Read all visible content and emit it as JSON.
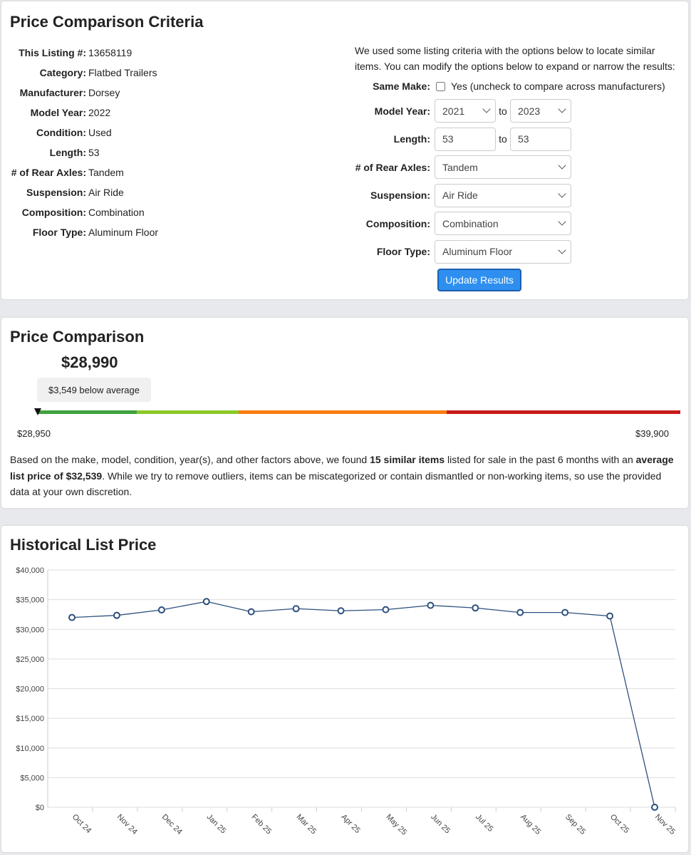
{
  "criteria": {
    "title": "Price Comparison Criteria",
    "listing": [
      {
        "label": "This Listing #:",
        "value": "13658119"
      },
      {
        "label": "Category:",
        "value": "Flatbed Trailers"
      },
      {
        "label": "Manufacturer:",
        "value": "Dorsey"
      },
      {
        "label": "Model Year:",
        "value": "2022"
      },
      {
        "label": "Condition:",
        "value": "Used"
      },
      {
        "label": "Length:",
        "value": "53"
      },
      {
        "label": "# of Rear Axles:",
        "value": "Tandem"
      },
      {
        "label": "Suspension:",
        "value": "Air Ride"
      },
      {
        "label": "Composition:",
        "value": "Combination"
      },
      {
        "label": "Floor Type:",
        "value": "Aluminum Floor"
      }
    ],
    "intro": "We used some listing criteria with the options below to locate similar items. You can modify the options below to expand or narrow the results:",
    "same_make_label": "Same Make:",
    "same_make_text": "Yes (uncheck to compare across manufacturers)",
    "same_make_checked": false,
    "model_year_label": "Model Year:",
    "year_from": "2021",
    "year_to": "2023",
    "to": "to",
    "length_label": "Length:",
    "length_from": "53",
    "length_to": "53",
    "axles_label": "# of Rear Axles:",
    "axles": "Tandem",
    "suspension_label": "Suspension:",
    "suspension": "Air Ride",
    "composition_label": "Composition:",
    "composition": "Combination",
    "floor_label": "Floor Type:",
    "floor": "Aluminum Floor",
    "update_button": "Update Results"
  },
  "comparison": {
    "title": "Price Comparison",
    "price": "$28,990",
    "badge": "$3,549 below average",
    "min": "$28,950",
    "max": "$39,900",
    "colors": [
      "#3fa13f",
      "#8ac926",
      "#fb7d0e",
      "#c81a1a"
    ],
    "p1": "Based on the make, model, condition, year(s), and other factors above, we found ",
    "b1": "15 similar items",
    "p2": " listed for sale in the past 6 months with an ",
    "b2": "average list price of $32,539",
    "p3": ". While we try to remove outliers, items can be miscategorized or contain dismantled or non-working items, so use the provided data at your own discretion."
  },
  "chart_data": {
    "type": "line",
    "title": "Historical List Price",
    "categories": [
      "Oct 24",
      "Nov 24",
      "Dec 24",
      "Jan 25",
      "Feb 25",
      "Mar 25",
      "Apr 25",
      "May 25",
      "Jun 25",
      "Jul 25",
      "Aug 25",
      "Sep 25",
      "Oct 25",
      "Nov 25"
    ],
    "values": [
      32000,
      32350,
      33270,
      34680,
      32960,
      33480,
      33120,
      33320,
      34040,
      33600,
      32840,
      32840,
      32240,
      0
    ],
    "ylim": [
      0,
      40000
    ],
    "yticks": [
      "$0",
      "$5,000",
      "$10,000",
      "$15,000",
      "$20,000",
      "$25,000",
      "$30,000",
      "$35,000",
      "$40,000"
    ],
    "grid": true,
    "color": "#2c4f7c"
  }
}
